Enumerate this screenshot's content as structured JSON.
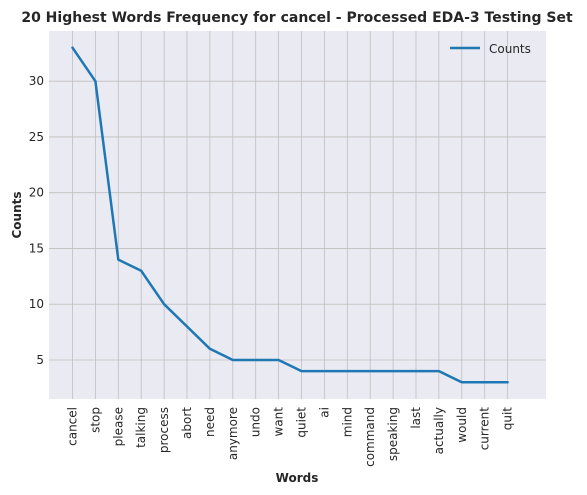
{
  "chart_data": {
    "type": "line",
    "title": "20 Highest Words Frequency for cancel - Processed EDA-3 Testing Set",
    "xlabel": "Words",
    "ylabel": "Counts",
    "categories": [
      "cancel",
      "stop",
      "please",
      "talking",
      "process",
      "abort",
      "need",
      "anymore",
      "undo",
      "want",
      "quiet",
      "ai",
      "mind",
      "command",
      "speaking",
      "last",
      "actually",
      "would",
      "current",
      "quit"
    ],
    "series": [
      {
        "name": "Counts",
        "values": [
          33,
          30,
          14,
          13,
          10,
          8,
          6,
          5,
          5,
          5,
          4,
          4,
          4,
          4,
          4,
          4,
          4,
          3,
          3,
          3
        ],
        "color": "#1f77b4"
      }
    ],
    "yticks": [
      5,
      10,
      15,
      20,
      25,
      30
    ],
    "ylim": [
      1.5,
      34.5
    ],
    "grid": true,
    "legend_position": "top-right",
    "background_color": "#eaeaf2",
    "grid_color": "#bfbfbf"
  }
}
